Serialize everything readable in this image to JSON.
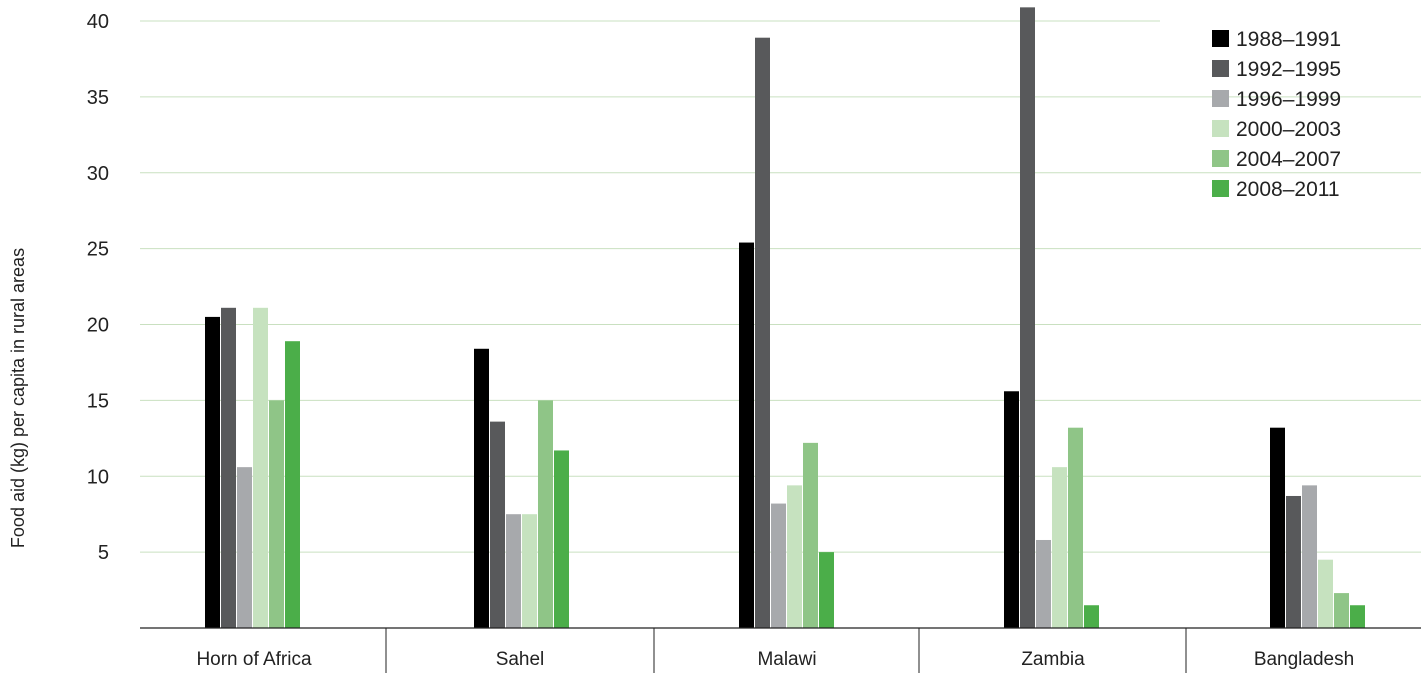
{
  "chart_data": {
    "type": "bar",
    "title": "",
    "xlabel": "",
    "ylabel": "Food aid (kg) per capita in rural areas",
    "ylim": [
      0,
      40
    ],
    "yticks": [
      5,
      10,
      15,
      20,
      25,
      30,
      35,
      40
    ],
    "grid": true,
    "legend_position": "top-right",
    "categories": [
      "Horn of Africa",
      "Sahel",
      "Malawi",
      "Zambia",
      "Bangladesh"
    ],
    "series": [
      {
        "name": "1988–1991",
        "color": "#000000",
        "values": [
          20.5,
          18.4,
          25.4,
          15.6,
          13.2
        ]
      },
      {
        "name": "1992–1995",
        "color": "#58595b",
        "values": [
          21.1,
          13.6,
          38.9,
          40.9,
          8.7
        ]
      },
      {
        "name": "1996–1999",
        "color": "#a7a9ac",
        "values": [
          10.6,
          7.5,
          8.2,
          5.8,
          9.4
        ]
      },
      {
        "name": "2000–2003",
        "color": "#c6e2bf",
        "values": [
          21.1,
          7.5,
          9.4,
          10.6,
          4.5
        ]
      },
      {
        "name": "2004–2007",
        "color": "#8fc587",
        "values": [
          15.0,
          15.0,
          12.2,
          13.2,
          2.3
        ]
      },
      {
        "name": "2008–2011",
        "color": "#4bae49",
        "values": [
          18.9,
          11.7,
          5.0,
          1.5,
          1.5
        ]
      }
    ]
  }
}
